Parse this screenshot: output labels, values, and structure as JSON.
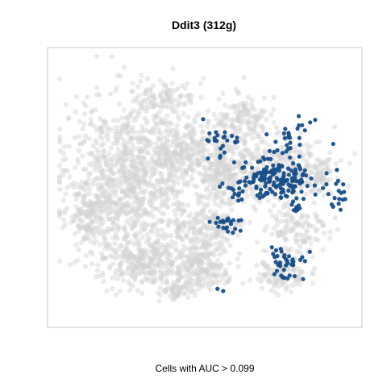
{
  "chart_data": {
    "type": "scatter",
    "title": "Ddit3 (312g)",
    "xlabel": "Cells with AUC > 0.099",
    "ylabel": "",
    "axes_visible": false,
    "grid": false,
    "box": true,
    "series": [
      {
        "role": "below-threshold",
        "color": "#d3d3d3",
        "point_count": 3000
      },
      {
        "role": "above-threshold",
        "color": "#174e8a",
        "point_count": 312
      }
    ],
    "highlighted_regions": [
      {
        "cx": 0.76,
        "cy": 0.8,
        "rx": 0.05,
        "ry": 0.05,
        "n": 40
      },
      {
        "cx": 0.57,
        "cy": 0.64,
        "rx": 0.04,
        "ry": 0.03,
        "n": 22
      },
      {
        "cx": 0.81,
        "cy": 0.59,
        "rx": 0.02,
        "ry": 0.02,
        "n": 6
      },
      {
        "cx": 0.73,
        "cy": 0.47,
        "rx": 0.14,
        "ry": 0.08,
        "n": 170
      },
      {
        "cx": 0.94,
        "cy": 0.53,
        "rx": 0.03,
        "ry": 0.06,
        "n": 14
      },
      {
        "cx": 0.56,
        "cy": 0.33,
        "rx": 0.06,
        "ry": 0.06,
        "n": 26
      },
      {
        "cx": 0.8,
        "cy": 0.3,
        "rx": 0.05,
        "ry": 0.07,
        "n": 24
      },
      {
        "cx": 0.6,
        "cy": 0.53,
        "rx": 0.03,
        "ry": 0.03,
        "n": 8
      },
      {
        "cx": 0.55,
        "cy": 0.9,
        "rx": 0.01,
        "ry": 0.01,
        "n": 2
      }
    ],
    "background_regions": [
      {
        "cx": 0.24,
        "cy": 0.45,
        "rx": 0.2,
        "ry": 0.26,
        "n": 900
      },
      {
        "cx": 0.3,
        "cy": 0.78,
        "rx": 0.16,
        "ry": 0.1,
        "n": 340
      },
      {
        "cx": 0.1,
        "cy": 0.6,
        "rx": 0.06,
        "ry": 0.14,
        "n": 140
      },
      {
        "cx": 0.48,
        "cy": 0.82,
        "rx": 0.08,
        "ry": 0.07,
        "n": 160
      },
      {
        "cx": 0.5,
        "cy": 0.66,
        "rx": 0.1,
        "ry": 0.09,
        "n": 180
      },
      {
        "cx": 0.4,
        "cy": 0.9,
        "rx": 0.06,
        "ry": 0.04,
        "n": 60
      },
      {
        "cx": 0.55,
        "cy": 0.45,
        "rx": 0.08,
        "ry": 0.12,
        "n": 200
      },
      {
        "cx": 0.72,
        "cy": 0.44,
        "rx": 0.17,
        "ry": 0.12,
        "n": 320
      },
      {
        "cx": 0.62,
        "cy": 0.25,
        "rx": 0.08,
        "ry": 0.1,
        "n": 150
      },
      {
        "cx": 0.8,
        "cy": 0.68,
        "rx": 0.1,
        "ry": 0.09,
        "n": 120
      },
      {
        "cx": 0.75,
        "cy": 0.84,
        "rx": 0.08,
        "ry": 0.07,
        "n": 110
      },
      {
        "cx": 0.35,
        "cy": 0.15,
        "rx": 0.1,
        "ry": 0.06,
        "n": 90
      },
      {
        "cx": 0.42,
        "cy": 0.35,
        "rx": 0.1,
        "ry": 0.12,
        "n": 200
      },
      {
        "cx": 0.88,
        "cy": 0.48,
        "rx": 0.06,
        "ry": 0.06,
        "n": 60
      }
    ]
  }
}
